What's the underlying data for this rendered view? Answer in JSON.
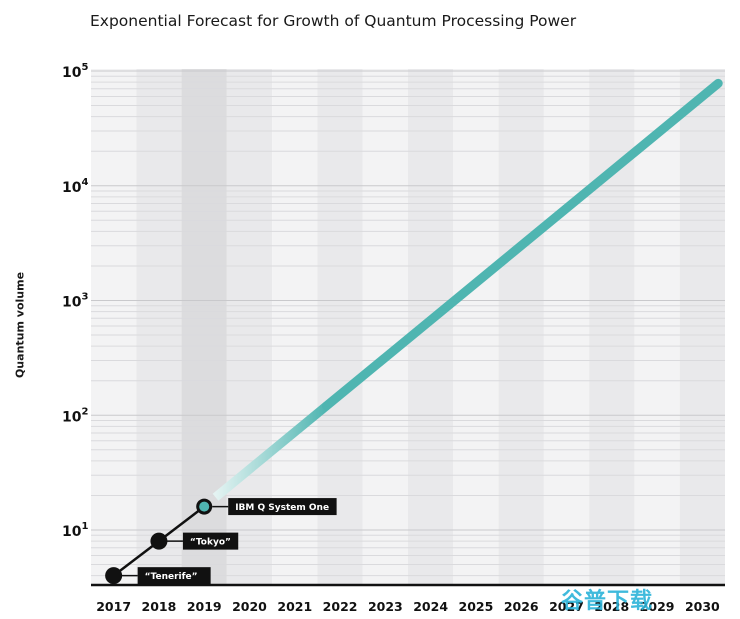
{
  "chart_data": {
    "type": "line",
    "title": "Exponential Forecast for Growth of Quantum Processing Power",
    "xlabel": "",
    "ylabel": "Quantum volume",
    "yscale": "log",
    "ylim": [
      2.5,
      100000
    ],
    "xlim": [
      2016.5,
      2030.5
    ],
    "grid": true,
    "categories": [
      "2017",
      "2018",
      "2019",
      "2020",
      "2021",
      "2022",
      "2023",
      "2024",
      "2025",
      "2026",
      "2027",
      "2028",
      "2029",
      "2030"
    ],
    "y_ticks": [
      {
        "base": "10",
        "exp": "1",
        "value": 10
      },
      {
        "base": "10",
        "exp": "2",
        "value": 100
      },
      {
        "base": "10",
        "exp": "3",
        "value": 1000
      },
      {
        "base": "10",
        "exp": "4",
        "value": 10000
      },
      {
        "base": "10",
        "exp": "5",
        "value": 100000
      }
    ],
    "series": [
      {
        "kind": "measured",
        "color": "#000000",
        "points": [
          {
            "x": 2017,
            "y": 4,
            "label": "“Tenerife”"
          },
          {
            "x": 2018,
            "y": 8,
            "label": "“Tokyo”"
          },
          {
            "x": 2019,
            "y": 16,
            "label": "IBM Q System One"
          }
        ]
      },
      {
        "kind": "forecast",
        "color": "#4fb5b1",
        "points": [
          {
            "x": 2019,
            "y": 16
          },
          {
            "x": 2030,
            "y": 60000
          }
        ]
      }
    ]
  },
  "colors": {
    "forecast": "#4fb5b1",
    "forecast_fade": "#cfe9e7",
    "measured": "#000000",
    "band_light": "#f3f3f4",
    "band_dark": "#e9e9eb",
    "highlight_band": "#dcdcde"
  },
  "watermark": "谷普下载"
}
